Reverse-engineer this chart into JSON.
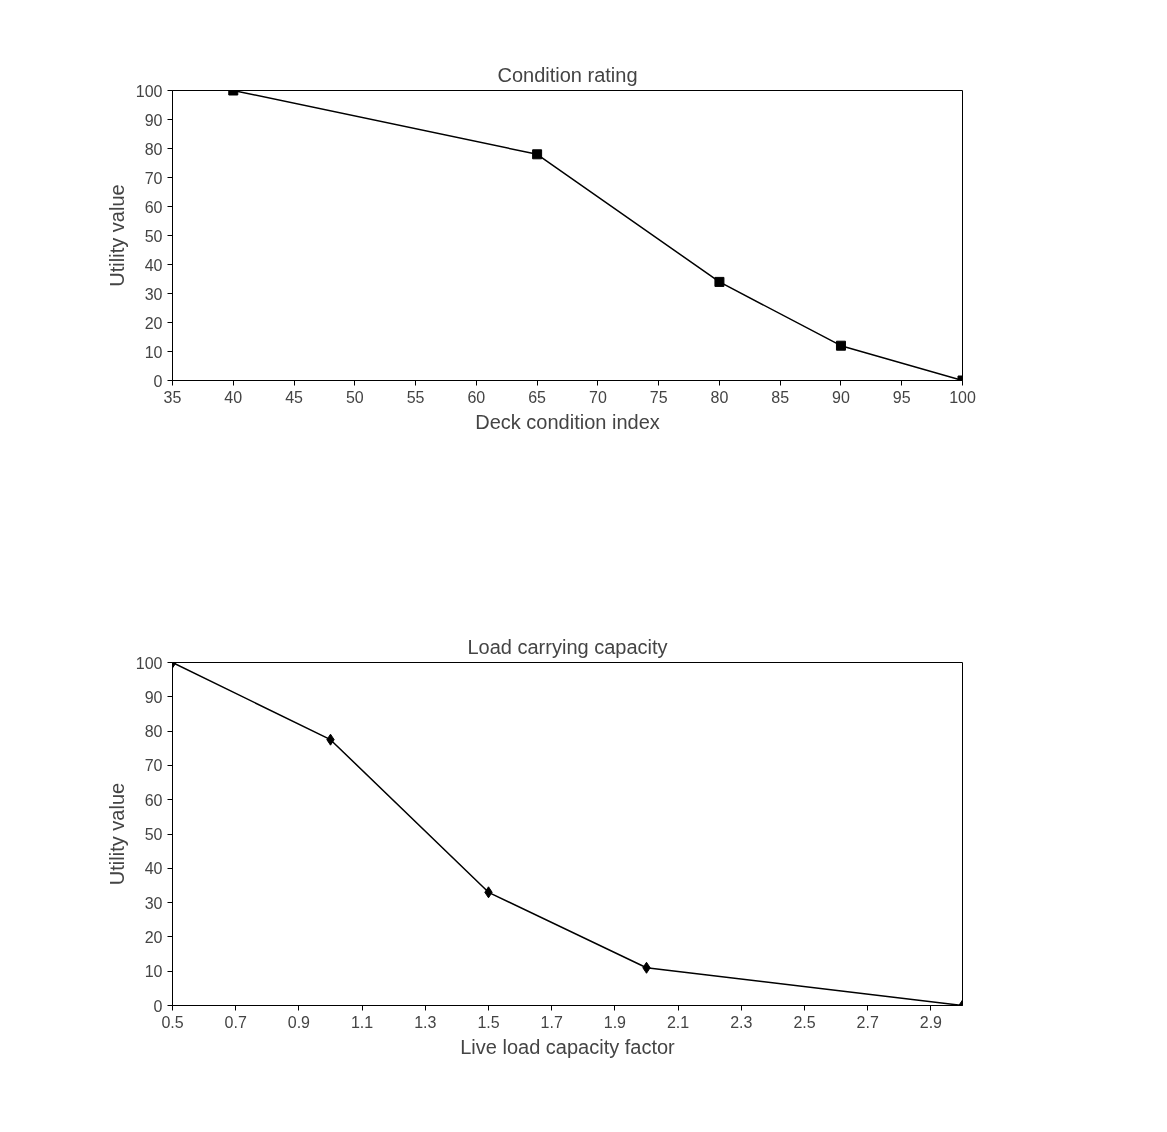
{
  "chart_data": [
    {
      "type": "line",
      "title": "Condition rating",
      "xlabel": "Deck condition index",
      "ylabel": "Utility value",
      "marker": "square",
      "xlim": [
        35,
        100
      ],
      "xticks": [
        35,
        40,
        45,
        50,
        55,
        60,
        65,
        70,
        75,
        80,
        85,
        90,
        95,
        100
      ],
      "ylim": [
        0,
        100
      ],
      "yticks": [
        0,
        10,
        20,
        30,
        40,
        50,
        60,
        70,
        80,
        90,
        100
      ],
      "x": [
        40,
        65,
        80,
        90,
        100
      ],
      "series": [
        {
          "color": "#000000",
          "values": [
            100,
            78,
            34,
            12,
            0
          ]
        }
      ]
    },
    {
      "type": "line",
      "title": "Load carrying capacity",
      "xlabel": "Live load capacity factor",
      "ylabel": "Utility value",
      "marker": "diamond",
      "xlim": [
        0.5,
        3.0
      ],
      "xticks": [
        0.5,
        0.7,
        0.9,
        1.1,
        1.3,
        1.5,
        1.7,
        1.9,
        2.1,
        2.3,
        2.5,
        2.7,
        2.9
      ],
      "ylim": [
        0,
        100
      ],
      "yticks": [
        0,
        10,
        20,
        30,
        40,
        50,
        60,
        70,
        80,
        90,
        100
      ],
      "x": [
        0.5,
        1.0,
        1.5,
        2.0,
        3.0
      ],
      "series": [
        {
          "color": "#000000",
          "values": [
            100,
            77.5,
            33,
            11,
            0
          ]
        }
      ]
    }
  ]
}
